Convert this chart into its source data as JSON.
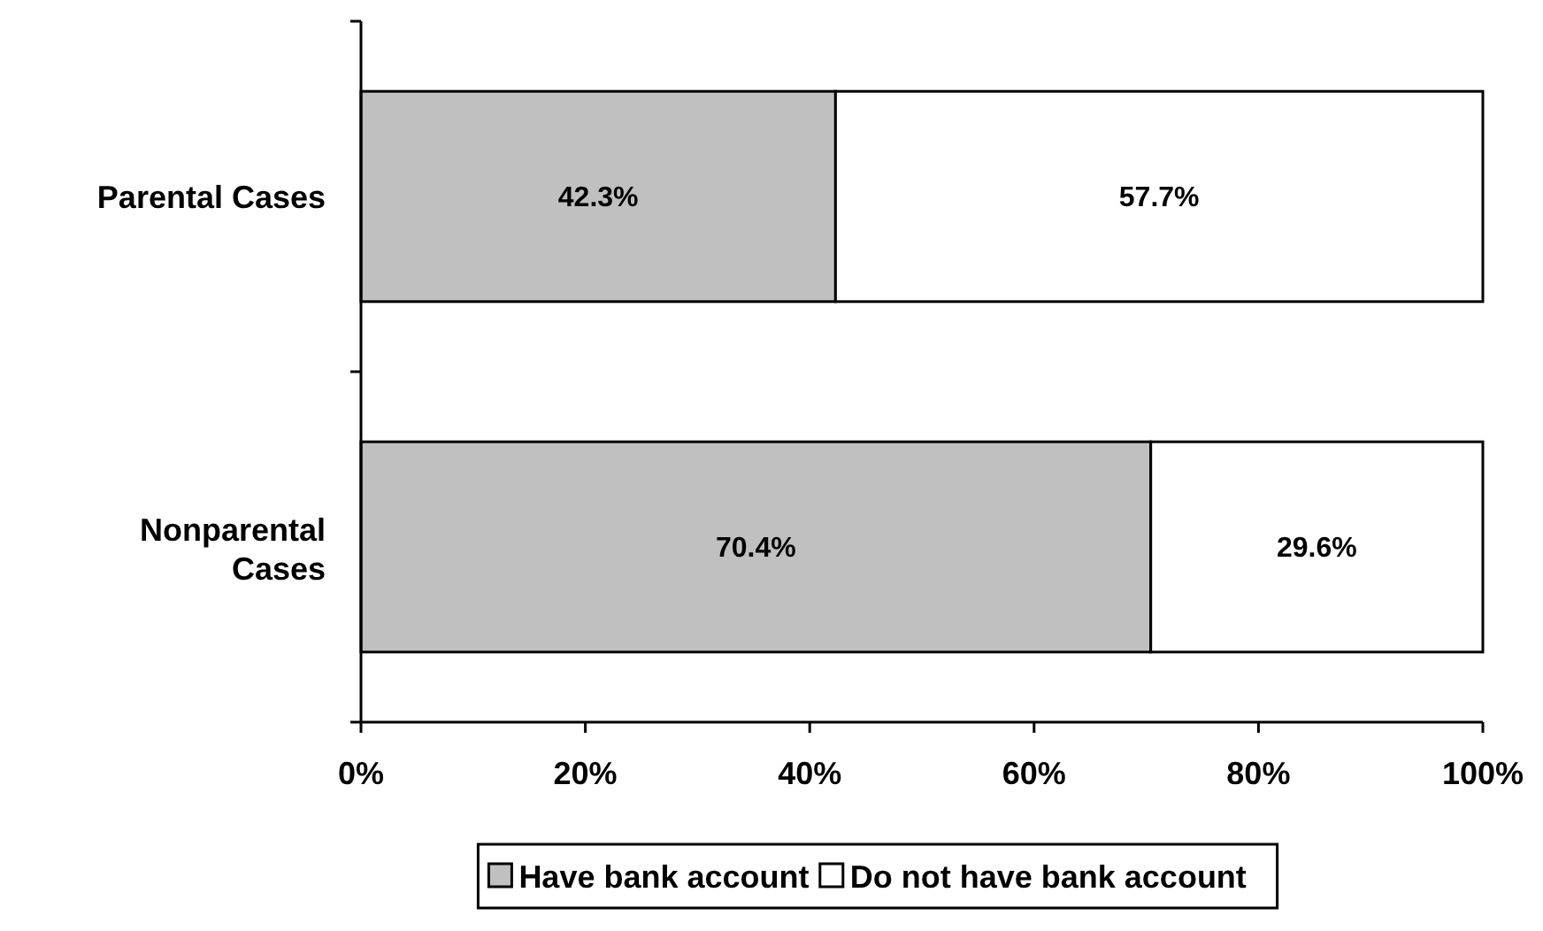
{
  "chart_data": {
    "type": "bar",
    "orientation": "horizontal",
    "stacked": true,
    "categories": [
      "Parental Cases",
      "Nonparental Cases"
    ],
    "series": [
      {
        "name": "Have bank account",
        "color": "#c0c0c0",
        "values": [
          42.3,
          70.4
        ],
        "value_labels": [
          "42.3%",
          "70.4%"
        ]
      },
      {
        "name": "Do not have bank account",
        "color": "#ffffff",
        "values": [
          57.7,
          29.6
        ],
        "value_labels": [
          "57.7%",
          "29.6%"
        ]
      }
    ],
    "xlim": [
      0,
      100
    ],
    "xticks": [
      {
        "value": 0,
        "label": "0%"
      },
      {
        "value": 20,
        "label": "20%"
      },
      {
        "value": 40,
        "label": "40%"
      },
      {
        "value": 60,
        "label": "60%"
      },
      {
        "value": 80,
        "label": "80%"
      },
      {
        "value": 100,
        "label": "100%"
      }
    ],
    "legend": "bottom"
  }
}
